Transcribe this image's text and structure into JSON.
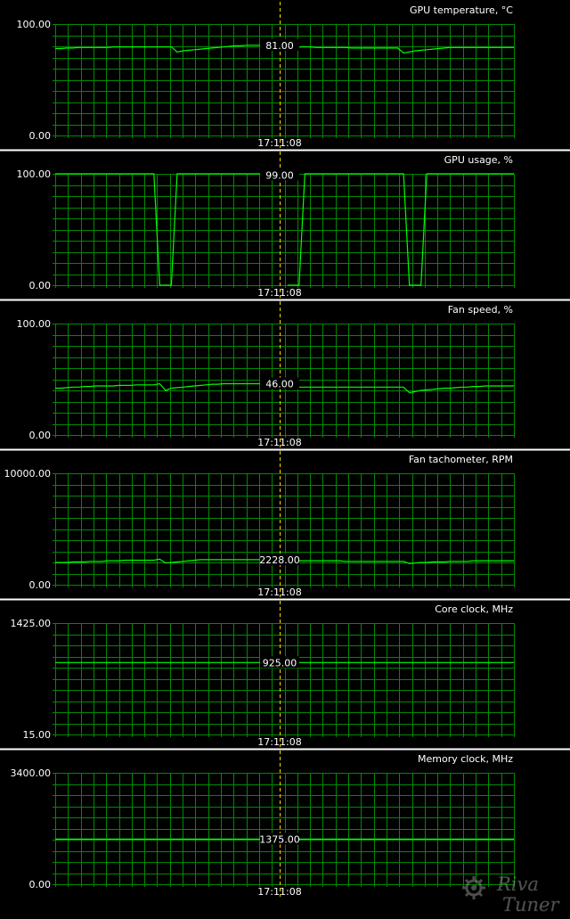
{
  "chart_data": [
    {
      "type": "line",
      "title": "GPU temperature, °C",
      "y_max_label": "100.00",
      "y_min_label": "0.00",
      "ylim": [
        0,
        100
      ],
      "cursor_value_label": "81.00",
      "cursor_time_label": "17:11:08",
      "grid": true,
      "series": [
        {
          "values": [
            78,
            78,
            78.5,
            78.5,
            79,
            79,
            79,
            79,
            79,
            79,
            79.5,
            79.5,
            79.5,
            79.5,
            79.5,
            79.5,
            79.5,
            79.5,
            79.5,
            79.5,
            79.5,
            75,
            76,
            76.5,
            77,
            77.5,
            78,
            78.5,
            79,
            79.5,
            80,
            80.5,
            80.5,
            81,
            81,
            81,
            81,
            81,
            81,
            81,
            80,
            80,
            79.5,
            79.5,
            79.5,
            79,
            79,
            79,
            79,
            79,
            79,
            78.5,
            78.5,
            78.5,
            78.5,
            78.5,
            78.5,
            78.5,
            78.5,
            78.5,
            74,
            75,
            76,
            76.5,
            77,
            77.5,
            78,
            78.5,
            79,
            79,
            79,
            79,
            79,
            79,
            79,
            79,
            79,
            79,
            79,
            79
          ]
        }
      ]
    },
    {
      "type": "line",
      "title": "GPU usage, %",
      "y_max_label": "100.00",
      "y_min_label": "0.00",
      "ylim": [
        0,
        100
      ],
      "cursor_value_label": "99.00",
      "cursor_time_label": "17:11:08",
      "grid": true,
      "series": [
        {
          "values": [
            100,
            100,
            100,
            100,
            100,
            100,
            100,
            100,
            100,
            100,
            100,
            100,
            100,
            100,
            100,
            100,
            100,
            100,
            0,
            0,
            0,
            100,
            100,
            100,
            100,
            100,
            100,
            100,
            100,
            100,
            100,
            100,
            100,
            100,
            100,
            100,
            100,
            100,
            100,
            99,
            0,
            0,
            0,
            100,
            100,
            100,
            100,
            100,
            100,
            100,
            100,
            100,
            100,
            100,
            100,
            100,
            100,
            100,
            100,
            100,
            100,
            0,
            0,
            0,
            100,
            100,
            100,
            100,
            100,
            100,
            100,
            100,
            100,
            100,
            100,
            100,
            100,
            100,
            100,
            100
          ]
        }
      ]
    },
    {
      "type": "line",
      "title": "Fan speed, %",
      "y_max_label": "100.00",
      "y_min_label": "0.00",
      "ylim": [
        0,
        100
      ],
      "cursor_value_label": "46.00",
      "cursor_time_label": "17:11:08",
      "grid": true,
      "series": [
        {
          "values": [
            42,
            42,
            42.5,
            43,
            43,
            43.5,
            43.5,
            44,
            44,
            44,
            44,
            44.5,
            44.5,
            44.5,
            45,
            45,
            45,
            45,
            46,
            40,
            42,
            42.5,
            43,
            43.5,
            44,
            44.5,
            45,
            45.5,
            45.5,
            46,
            46,
            46,
            46,
            46,
            46,
            46,
            46,
            46,
            46,
            46,
            43,
            43,
            43,
            43,
            43,
            43,
            43,
            43,
            43,
            43,
            43,
            43,
            43,
            43,
            43,
            43,
            43,
            43,
            43,
            43,
            43,
            38,
            39,
            40,
            40.5,
            41,
            41.5,
            42,
            42,
            42.5,
            43,
            43,
            43.5,
            43.5,
            44,
            44,
            44,
            44,
            44,
            44
          ]
        }
      ]
    },
    {
      "type": "line",
      "title": "Fan tachometer, RPM",
      "y_max_label": "10000.00",
      "y_min_label": "0.00",
      "ylim": [
        0,
        10000
      ],
      "cursor_value_label": "2228.00",
      "cursor_time_label": "17:11:08",
      "grid": true,
      "series": [
        {
          "values": [
            2000,
            2000,
            2000,
            2050,
            2050,
            2050,
            2100,
            2100,
            2100,
            2150,
            2150,
            2150,
            2200,
            2200,
            2200,
            2200,
            2200,
            2200,
            2300,
            1950,
            2000,
            2050,
            2100,
            2150,
            2200,
            2250,
            2250,
            2250,
            2250,
            2250,
            2250,
            2250,
            2250,
            2250,
            2250,
            2250,
            2250,
            2250,
            2250,
            2228,
            2150,
            2150,
            2150,
            2150,
            2150,
            2150,
            2150,
            2150,
            2150,
            2150,
            2100,
            2100,
            2100,
            2100,
            2100,
            2100,
            2100,
            2100,
            2100,
            2100,
            2100,
            1900,
            1950,
            2000,
            2000,
            2050,
            2050,
            2050,
            2100,
            2100,
            2100,
            2100,
            2150,
            2150,
            2150,
            2150,
            2150,
            2150,
            2150,
            2150
          ]
        }
      ]
    },
    {
      "type": "line",
      "title": "Core clock, MHz",
      "y_max_label": "1425.00",
      "y_min_label": "15.00",
      "ylim": [
        15,
        1425
      ],
      "cursor_value_label": "925.00",
      "cursor_time_label": "17:11:08",
      "grid": true,
      "series": [
        {
          "values": [
            925,
            925,
            925,
            925,
            925,
            925,
            925,
            925,
            925,
            925,
            925,
            925,
            925,
            925,
            925,
            925,
            925,
            925,
            925,
            925,
            925,
            925,
            925,
            925,
            925,
            925,
            925,
            925,
            925,
            925,
            925,
            925,
            925,
            925,
            925,
            925,
            925,
            925,
            925,
            925,
            925,
            925,
            925,
            925,
            925,
            925,
            925,
            925,
            925,
            925,
            925,
            925,
            925,
            925,
            925,
            925,
            925,
            925,
            925,
            925,
            925,
            925,
            925,
            925,
            925,
            925,
            925,
            925,
            925,
            925,
            925,
            925,
            925,
            925,
            925,
            925,
            925,
            925,
            925,
            925
          ]
        }
      ]
    },
    {
      "type": "line",
      "title": "Memory clock, MHz",
      "y_max_label": "3400.00",
      "y_min_label": "0.00",
      "ylim": [
        0,
        3400
      ],
      "cursor_value_label": "1375.00",
      "cursor_time_label": "17:11:08",
      "grid": true,
      "series": [
        {
          "values": [
            1375,
            1375,
            1375,
            1375,
            1375,
            1375,
            1375,
            1375,
            1375,
            1375,
            1375,
            1375,
            1375,
            1375,
            1375,
            1375,
            1375,
            1375,
            1375,
            1375,
            1375,
            1375,
            1375,
            1375,
            1375,
            1375,
            1375,
            1375,
            1375,
            1375,
            1375,
            1375,
            1375,
            1375,
            1375,
            1375,
            1375,
            1375,
            1375,
            1375,
            1375,
            1375,
            1375,
            1375,
            1375,
            1375,
            1375,
            1375,
            1375,
            1375,
            1375,
            1375,
            1375,
            1375,
            1375,
            1375,
            1375,
            1375,
            1375,
            1375,
            1375,
            1375,
            1375,
            1375,
            1375,
            1375,
            1375,
            1375,
            1375,
            1375,
            1375,
            1375,
            1375,
            1375,
            1375,
            1375,
            1375,
            1375,
            1375,
            1375
          ]
        }
      ]
    }
  ],
  "colors": {
    "background": "#000000",
    "grid": "#008a00",
    "series": "#00ff00",
    "cursor": "#ffd800",
    "text": "#ffffff",
    "separator": "#ffffff"
  },
  "watermark": {
    "text_top": "Riva",
    "text_bottom": "Tuner"
  }
}
